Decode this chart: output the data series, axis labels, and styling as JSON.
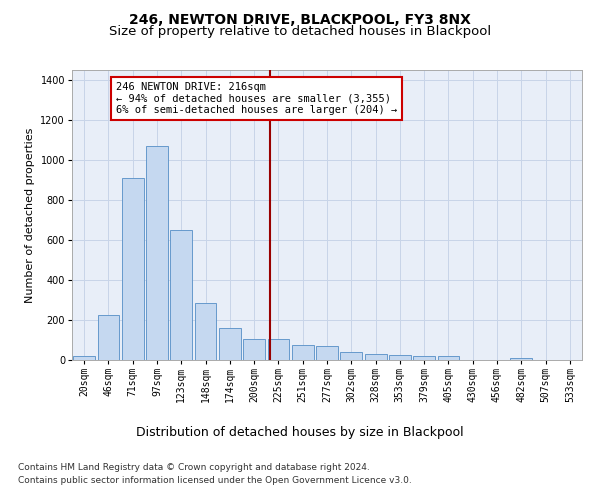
{
  "title1": "246, NEWTON DRIVE, BLACKPOOL, FY3 8NX",
  "title2": "Size of property relative to detached houses in Blackpool",
  "xlabel": "Distribution of detached houses by size in Blackpool",
  "ylabel": "Number of detached properties",
  "footnote1": "Contains HM Land Registry data © Crown copyright and database right 2024.",
  "footnote2": "Contains public sector information licensed under the Open Government Licence v3.0.",
  "categories": [
    "20sqm",
    "46sqm",
    "71sqm",
    "97sqm",
    "123sqm",
    "148sqm",
    "174sqm",
    "200sqm",
    "225sqm",
    "251sqm",
    "277sqm",
    "302sqm",
    "328sqm",
    "353sqm",
    "379sqm",
    "405sqm",
    "430sqm",
    "456sqm",
    "482sqm",
    "507sqm",
    "533sqm"
  ],
  "values": [
    20,
    225,
    910,
    1070,
    650,
    285,
    160,
    105,
    105,
    75,
    70,
    38,
    28,
    25,
    20,
    20,
    0,
    0,
    10,
    0,
    0
  ],
  "bar_color": "#c5d8f0",
  "bar_edge_color": "#6699cc",
  "grid_color": "#c8d4e8",
  "bg_color": "#e8eef8",
  "vline_color": "#990000",
  "annotation_text": "246 NEWTON DRIVE: 216sqm\n← 94% of detached houses are smaller (3,355)\n6% of semi-detached houses are larger (204) →",
  "annotation_box_color": "#cc0000",
  "ylim": [
    0,
    1450
  ],
  "title1_fontsize": 10,
  "title2_fontsize": 9.5,
  "xlabel_fontsize": 9,
  "ylabel_fontsize": 8,
  "annotation_fontsize": 7.5,
  "tick_fontsize": 7,
  "footnote_fontsize": 6.5
}
